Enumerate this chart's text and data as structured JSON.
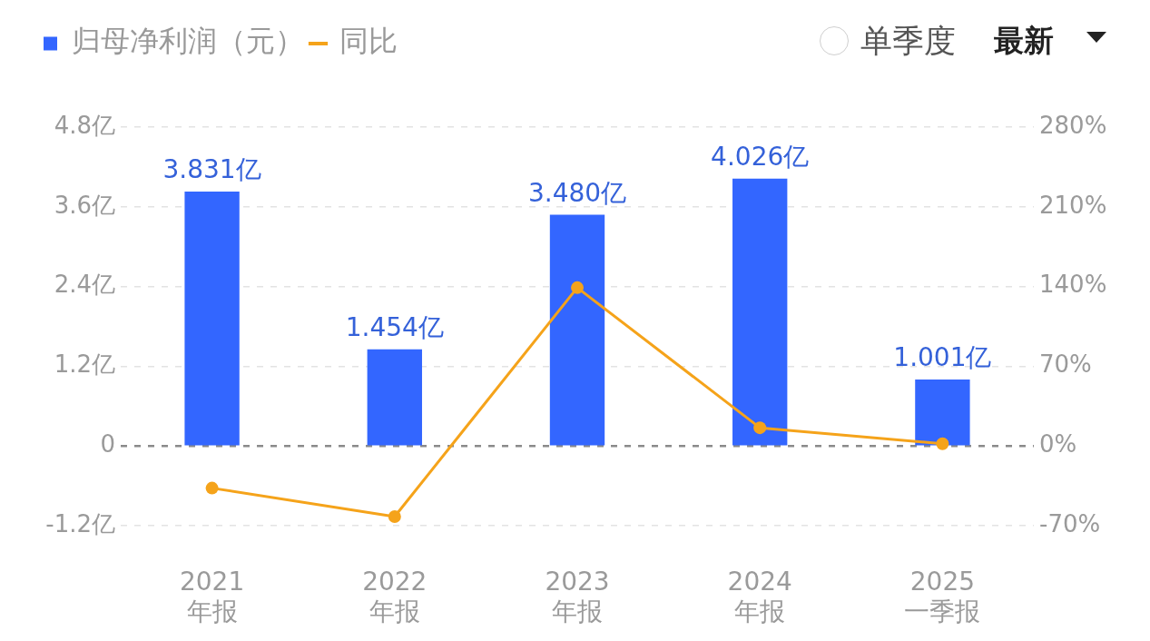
{
  "chart_data": {
    "type": "bar",
    "categories": [
      "2021\n年报",
      "2022\n年报",
      "2023\n年报",
      "2024\n年报",
      "2025\n一季报"
    ],
    "series": [
      {
        "name": "归母净利润（元）",
        "type": "bar",
        "color": "#3366ff",
        "values": [
          3.831,
          1.454,
          3.48,
          4.026,
          1.001
        ],
        "value_labels": [
          "3.831亿",
          "1.454亿",
          "3.480亿",
          "4.026亿",
          "1.001亿"
        ]
      },
      {
        "name": "同比",
        "type": "line",
        "axis": "y2",
        "color": "#f5a31a",
        "values": [
          -37,
          -62,
          139,
          16,
          2
        ]
      }
    ],
    "ylim": [
      -1.2,
      4.8
    ],
    "yticks": [
      {
        "value": -1.2,
        "label": "-1.2亿"
      },
      0,
      {
        "value": 1.2,
        "label": "1.2亿"
      },
      {
        "value": 2.4,
        "label": "2.4亿"
      },
      {
        "value": 3.6,
        "label": "3.6亿"
      },
      {
        "value": 4.8,
        "label": "4.8亿"
      }
    ],
    "y2lim": [
      -70,
      280
    ],
    "y2ticks": [
      {
        "value": -70,
        "label": "-70%"
      },
      {
        "value": 0,
        "label": "0%"
      },
      {
        "value": 70,
        "label": "70%"
      },
      {
        "value": 140,
        "label": "140%"
      },
      {
        "value": 210,
        "label": "210%"
      },
      {
        "value": 280,
        "label": "280%"
      }
    ],
    "ref_lines": [
      {
        "axis": "y",
        "value": 0,
        "color": "#8a8a8a",
        "line_style": "dashed"
      }
    ],
    "grid": "y",
    "legend": "top left",
    "marker": "circle",
    "annotations": [
      "单季度",
      "最新"
    ]
  }
}
